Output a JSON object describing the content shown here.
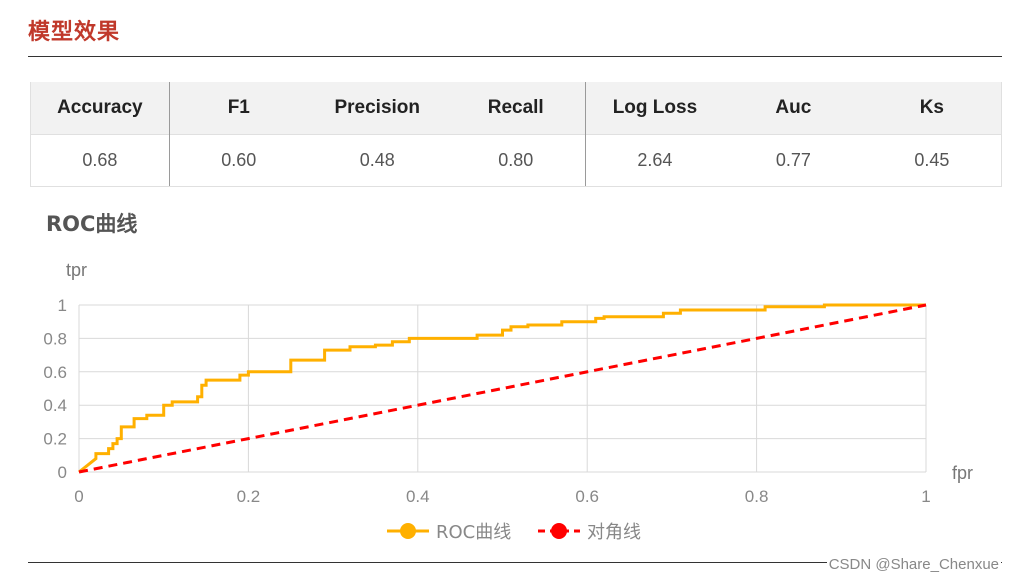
{
  "page": {
    "title": "模型效果",
    "section_title": "ROC曲线",
    "watermark": "CSDN @Share_Chenxue"
  },
  "metrics": {
    "headers": [
      "Accuracy",
      "F1",
      "Precision",
      "Recall",
      "Log Loss",
      "Auc",
      "Ks"
    ],
    "values": [
      "0.68",
      "0.60",
      "0.48",
      "0.80",
      "2.64",
      "0.77",
      "0.45"
    ]
  },
  "chart_data": {
    "type": "line",
    "title": "",
    "xlabel": "fpr",
    "ylabel": "tpr",
    "xlim": [
      0,
      1
    ],
    "ylim": [
      0,
      1
    ],
    "xticks": [
      "0",
      "0.2",
      "0.4",
      "0.6",
      "0.8",
      "1"
    ],
    "yticks": [
      "0",
      "0.2",
      "0.4",
      "0.6",
      "0.8",
      "1"
    ],
    "grid": true,
    "legend": "bottom",
    "series": [
      {
        "name": "ROC曲线",
        "color": "#ffb000",
        "style": "step-solid",
        "points": [
          [
            0,
            0
          ],
          [
            0.01,
            0.04
          ],
          [
            0.02,
            0.08
          ],
          [
            0.02,
            0.11
          ],
          [
            0.03,
            0.11
          ],
          [
            0.035,
            0.11
          ],
          [
            0.035,
            0.14
          ],
          [
            0.04,
            0.14
          ],
          [
            0.04,
            0.17
          ],
          [
            0.045,
            0.17
          ],
          [
            0.045,
            0.2
          ],
          [
            0.05,
            0.2
          ],
          [
            0.05,
            0.27
          ],
          [
            0.065,
            0.27
          ],
          [
            0.065,
            0.32
          ],
          [
            0.08,
            0.32
          ],
          [
            0.08,
            0.34
          ],
          [
            0.1,
            0.34
          ],
          [
            0.1,
            0.4
          ],
          [
            0.11,
            0.4
          ],
          [
            0.11,
            0.42
          ],
          [
            0.14,
            0.42
          ],
          [
            0.14,
            0.45
          ],
          [
            0.145,
            0.45
          ],
          [
            0.145,
            0.52
          ],
          [
            0.15,
            0.52
          ],
          [
            0.15,
            0.55
          ],
          [
            0.19,
            0.55
          ],
          [
            0.19,
            0.58
          ],
          [
            0.2,
            0.58
          ],
          [
            0.2,
            0.6
          ],
          [
            0.25,
            0.6
          ],
          [
            0.25,
            0.67
          ],
          [
            0.29,
            0.67
          ],
          [
            0.29,
            0.73
          ],
          [
            0.32,
            0.73
          ],
          [
            0.32,
            0.75
          ],
          [
            0.35,
            0.75
          ],
          [
            0.35,
            0.76
          ],
          [
            0.37,
            0.76
          ],
          [
            0.37,
            0.78
          ],
          [
            0.39,
            0.78
          ],
          [
            0.39,
            0.8
          ],
          [
            0.47,
            0.8
          ],
          [
            0.47,
            0.82
          ],
          [
            0.5,
            0.82
          ],
          [
            0.5,
            0.85
          ],
          [
            0.51,
            0.85
          ],
          [
            0.51,
            0.87
          ],
          [
            0.53,
            0.87
          ],
          [
            0.53,
            0.88
          ],
          [
            0.57,
            0.88
          ],
          [
            0.57,
            0.9
          ],
          [
            0.61,
            0.9
          ],
          [
            0.61,
            0.92
          ],
          [
            0.62,
            0.92
          ],
          [
            0.62,
            0.93
          ],
          [
            0.69,
            0.93
          ],
          [
            0.69,
            0.95
          ],
          [
            0.71,
            0.95
          ],
          [
            0.71,
            0.97
          ],
          [
            0.76,
            0.97
          ],
          [
            0.81,
            0.97
          ],
          [
            0.81,
            0.99
          ],
          [
            0.88,
            0.99
          ],
          [
            0.88,
            1.0
          ],
          [
            1.0,
            1.0
          ]
        ]
      },
      {
        "name": "对角线",
        "color": "#ff0000",
        "style": "dashed",
        "points": [
          [
            0,
            0
          ],
          [
            1,
            1
          ]
        ]
      }
    ]
  }
}
